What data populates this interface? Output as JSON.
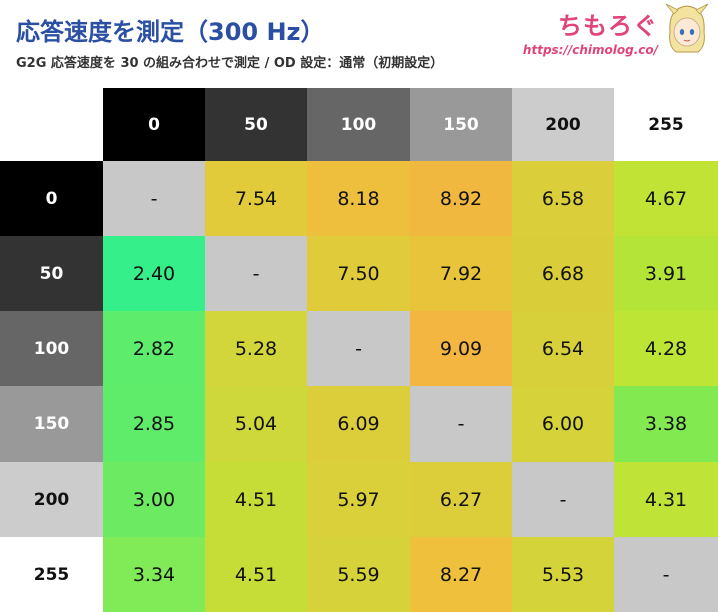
{
  "header": {
    "title": "応答速度を測定（300 Hz）",
    "subtitle": "G2G 応答速度を 30 の組み合わせで測定 / OD 設定：通常（初期設定）",
    "brand_logo": "ちもろぐ",
    "brand_url": "https://chimolog.co/"
  },
  "chart_data": {
    "type": "heatmap",
    "title": "応答速度を測定（300 Hz）",
    "subtitle": "G2G 応答速度を 30 の組み合わせで測定 / OD 設定：通常（初期設定）",
    "columns": [
      "0",
      "50",
      "100",
      "150",
      "200",
      "255"
    ],
    "rows": [
      "0",
      "50",
      "100",
      "150",
      "200",
      "255"
    ],
    "values": [
      [
        "-",
        "7.54",
        "8.18",
        "8.92",
        "6.58",
        "4.67"
      ],
      [
        "2.40",
        "-",
        "7.50",
        "7.92",
        "6.68",
        "3.91"
      ],
      [
        "2.82",
        "5.28",
        "-",
        "9.09",
        "6.54",
        "4.28"
      ],
      [
        "2.85",
        "5.04",
        "6.09",
        "-",
        "6.00",
        "3.38"
      ],
      [
        "3.00",
        "4.51",
        "5.97",
        "6.27",
        "-",
        "4.31"
      ],
      [
        "3.34",
        "4.51",
        "5.59",
        "8.27",
        "5.53",
        "-"
      ]
    ],
    "cell_colors": [
      [
        "#c8c8c8",
        "#e2cb3a",
        "#edbf3d",
        "#f1b83f",
        "#dace3a",
        "#c0e335"
      ],
      [
        "#35ef8b",
        "#c8c8c8",
        "#e0cc3a",
        "#e8c43b",
        "#d9cd39",
        "#b4e438"
      ],
      [
        "#5eec6d",
        "#d3d63a",
        "#c8c8c8",
        "#f3b640",
        "#d7d03a",
        "#bde536"
      ],
      [
        "#5fec6b",
        "#cfd83a",
        "#dbce3a",
        "#c8c8c8",
        "#d5d23a",
        "#83e951"
      ],
      [
        "#6ceb62",
        "#c6dd37",
        "#d9d03a",
        "#dccd3a",
        "#c8c8c8",
        "#bfe437"
      ],
      [
        "#80ea57",
        "#c6dd37",
        "#d6d33a",
        "#eec03c",
        "#d4d33a",
        "#c8c8c8"
      ]
    ],
    "header_colors": [
      {
        "bg": "#000000",
        "fg": "#ffffff"
      },
      {
        "bg": "#333333",
        "fg": "#ffffff"
      },
      {
        "bg": "#666666",
        "fg": "#ffffff"
      },
      {
        "bg": "#999999",
        "fg": "#ffffff"
      },
      {
        "bg": "#cccccc",
        "fg": "#111111"
      },
      {
        "bg": "#ffffff",
        "fg": "#111111"
      }
    ]
  }
}
